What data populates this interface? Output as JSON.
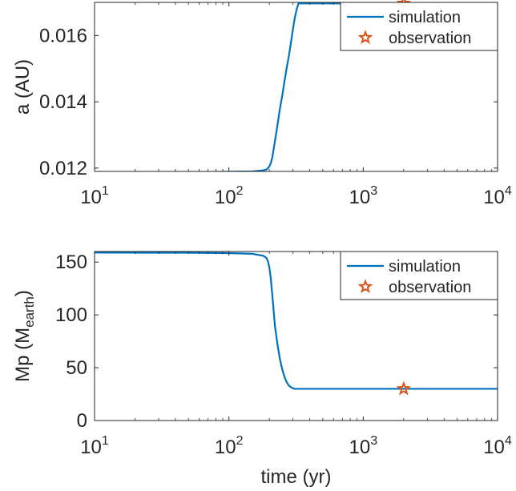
{
  "chart_data": [
    {
      "type": "line",
      "xlabel": "",
      "ylabel": "a (AU)",
      "xscale": "log",
      "xlim": [
        10,
        10000
      ],
      "ylim": [
        0.0119,
        0.017
      ],
      "xticks": [
        10,
        100,
        1000,
        10000
      ],
      "xtick_base": "10",
      "xtick_exponents": [
        "1",
        "2",
        "3",
        "4"
      ],
      "yticks": [
        0.012,
        0.014,
        0.016
      ],
      "ytick_labels": [
        "0.012",
        "0.014",
        "0.016"
      ],
      "grid": false,
      "legend_position": "top-right",
      "series": [
        {
          "name": "simulation",
          "color": "#0072BD",
          "x": [
            10,
            50,
            100,
            150,
            180,
            190,
            195,
            200,
            205,
            210,
            215,
            220,
            230,
            240,
            250,
            260,
            270,
            280,
            290,
            300,
            310,
            320,
            330,
            1000,
            10000
          ],
          "y": [
            0.01188,
            0.01188,
            0.01189,
            0.0119,
            0.01193,
            0.01196,
            0.01199,
            0.01205,
            0.01215,
            0.0123,
            0.01255,
            0.0128,
            0.0133,
            0.0138,
            0.0142,
            0.01465,
            0.01505,
            0.0154,
            0.0158,
            0.0162,
            0.01655,
            0.0168,
            0.01697,
            0.01697,
            0.01697
          ]
        },
        {
          "name": "observation",
          "color": "#D95319",
          "marker": "pentagram",
          "x": [
            2000
          ],
          "y": [
            0.01697
          ]
        }
      ]
    },
    {
      "type": "line",
      "xlabel": "time (yr)",
      "ylabel_base": "Mp (M",
      "ylabel_sub": "earth",
      "ylabel_close": ")",
      "xscale": "log",
      "xlim": [
        10,
        10000
      ],
      "ylim": [
        0,
        160
      ],
      "xticks": [
        10,
        100,
        1000,
        10000
      ],
      "xtick_base": "10",
      "xtick_exponents": [
        "1",
        "2",
        "3",
        "4"
      ],
      "yticks": [
        0,
        50,
        100,
        150
      ],
      "ytick_labels": [
        "0",
        "50",
        "100",
        "150"
      ],
      "grid": false,
      "legend_position": "top-right",
      "series": [
        {
          "name": "simulation",
          "color": "#0072BD",
          "x": [
            10,
            50,
            100,
            150,
            180,
            190,
            195,
            200,
            205,
            210,
            215,
            220,
            230,
            240,
            250,
            260,
            270,
            280,
            290,
            300,
            310,
            320,
            330,
            1000,
            10000
          ],
          "y": [
            159,
            158.8,
            158.5,
            157.8,
            156,
            154,
            151,
            145,
            135,
            120,
            105,
            90,
            72,
            58,
            48,
            41,
            36,
            33,
            31.5,
            30.5,
            30,
            30,
            30,
            30,
            30
          ]
        },
        {
          "name": "observation",
          "color": "#D95319",
          "marker": "pentagram",
          "x": [
            2000
          ],
          "y": [
            30
          ]
        }
      ]
    }
  ]
}
